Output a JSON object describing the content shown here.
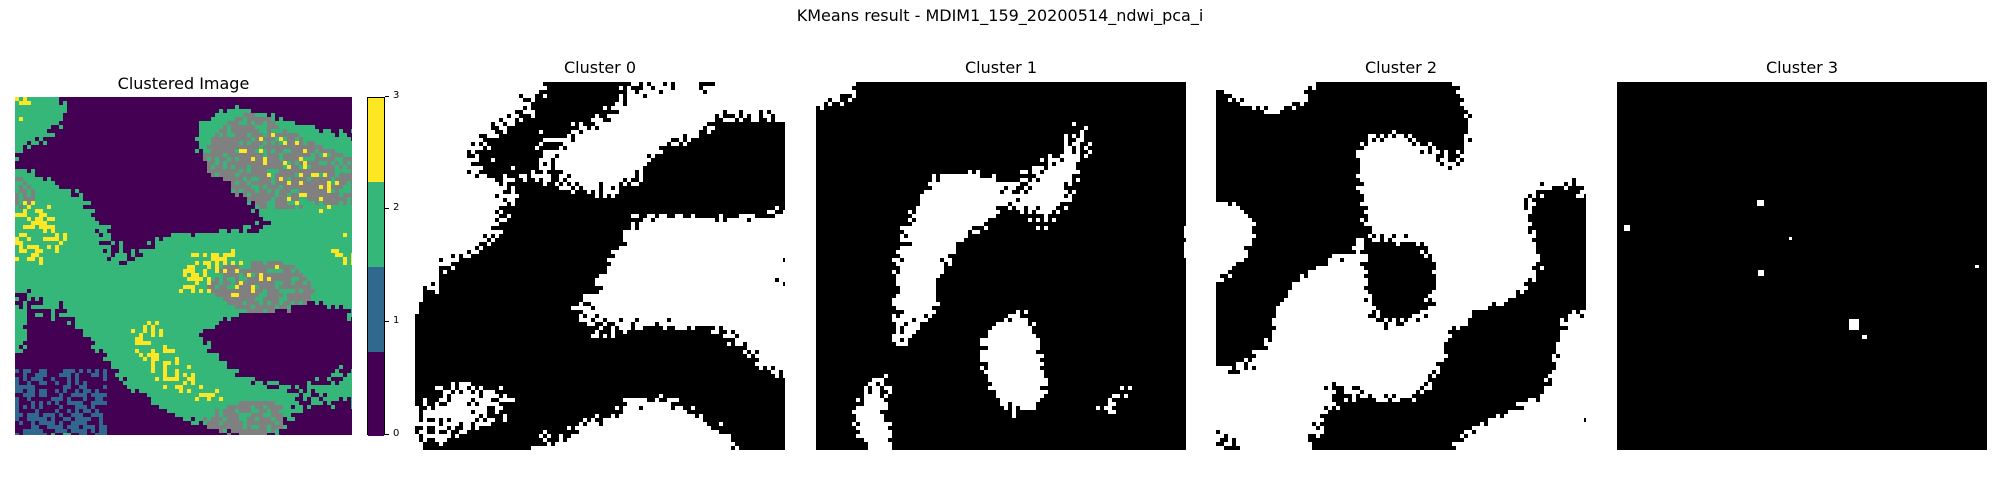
{
  "figure": {
    "title": "KMeans result - MDIM1_159_20200514_ndwi_pca_i"
  },
  "chart_data": [
    {
      "type": "heatmap",
      "title": "Clustered Image",
      "colorbar": {
        "ticks": [
          "0",
          "1",
          "2",
          "3"
        ],
        "range": [
          0,
          3
        ],
        "colors": [
          "#440154",
          "#31688e",
          "#35b779",
          "#fde725"
        ]
      },
      "legend_colors": {
        "gray": "#808080"
      }
    },
    {
      "type": "heatmap",
      "title": "Cluster 0",
      "colors": [
        "#000000",
        "#ffffff"
      ],
      "white_fraction": 0.45
    },
    {
      "type": "heatmap",
      "title": "Cluster 1",
      "colors": [
        "#000000",
        "#ffffff"
      ],
      "white_fraction": 0.06
    },
    {
      "type": "heatmap",
      "title": "Cluster 2",
      "colors": [
        "#000000",
        "#ffffff"
      ],
      "white_fraction": 0.5
    },
    {
      "type": "heatmap",
      "title": "Cluster 3",
      "colors": [
        "#000000",
        "#ffffff"
      ],
      "white_fraction": 0.005
    }
  ]
}
